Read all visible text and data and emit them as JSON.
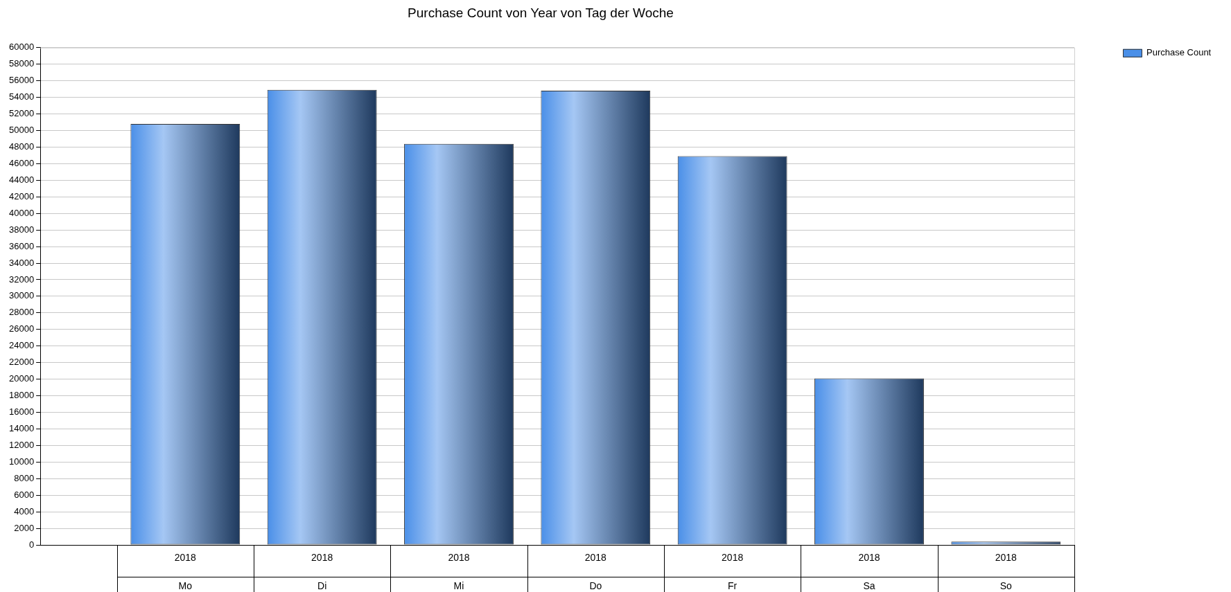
{
  "chart_data": {
    "type": "bar",
    "title": "Purchase Count von Year von Tag der Woche",
    "categories": [
      "Mo",
      "Di",
      "Mi",
      "Do",
      "Fr",
      "Sa",
      "So"
    ],
    "series": [
      {
        "name": "Purchase Count",
        "color": "#4a8fe8",
        "values": [
          50800,
          54900,
          48400,
          54800,
          46900,
          20100,
          400
        ]
      }
    ],
    "annotations": [
      "2018",
      "2018",
      "2018",
      "2018",
      "2018",
      "2018",
      "2018"
    ],
    "ylim": [
      0,
      60000
    ],
    "yticks": [
      0,
      2000,
      4000,
      6000,
      8000,
      10000,
      12000,
      14000,
      16000,
      18000,
      20000,
      22000,
      24000,
      26000,
      28000,
      30000,
      32000,
      34000,
      36000,
      38000,
      40000,
      42000,
      44000,
      46000,
      48000,
      50000,
      52000,
      54000,
      56000,
      58000,
      60000
    ],
    "grid": "y",
    "legend": "top right"
  }
}
